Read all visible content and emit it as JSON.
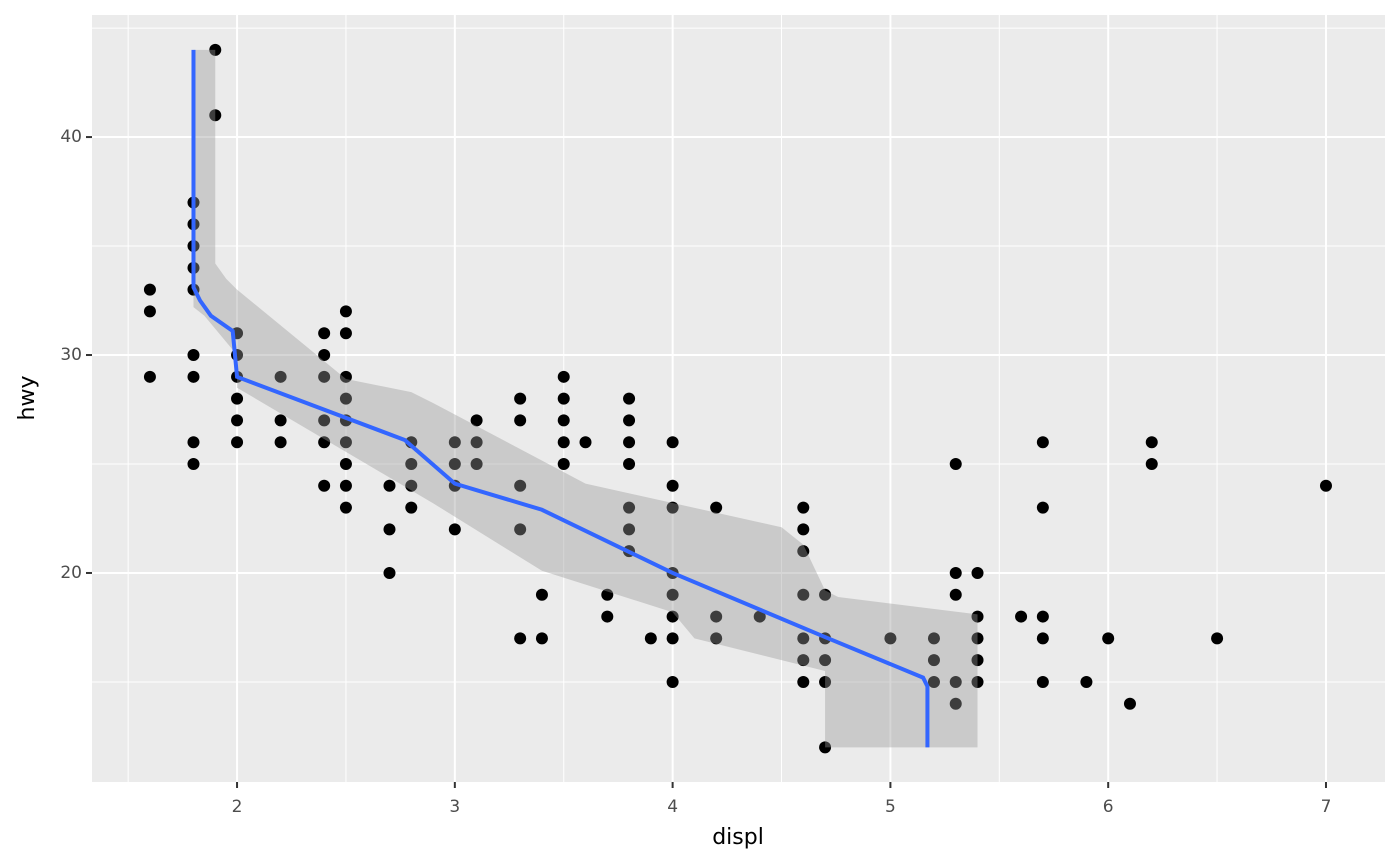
{
  "chart_data": {
    "type": "scatter",
    "x_label": "displ",
    "y_label": "hwy",
    "xlim": [
      1.334,
      7.271
    ],
    "ylim": [
      10.41,
      45.6
    ],
    "xticks": [
      2,
      3,
      4,
      5,
      6,
      7
    ],
    "yticks": [
      20,
      30,
      40
    ],
    "x_minor_ticks": [
      1.5,
      2.5,
      3.5,
      4.5,
      5.5,
      6.5
    ],
    "y_minor_ticks": [
      15,
      25,
      35,
      45
    ],
    "grid": true,
    "color": "#000000",
    "x": [
      1.6,
      1.6,
      1.6,
      1.8,
      1.8,
      1.8,
      1.8,
      1.8,
      1.8,
      1.8,
      1.8,
      1.8,
      1.9,
      1.9,
      2.0,
      2.0,
      2.0,
      2.0,
      2.0,
      2.0,
      2.2,
      2.2,
      2.2,
      2.4,
      2.4,
      2.4,
      2.4,
      2.4,
      2.4,
      2.5,
      2.5,
      2.5,
      2.5,
      2.5,
      2.5,
      2.5,
      2.5,
      2.5,
      2.7,
      2.7,
      2.7,
      2.8,
      2.8,
      2.8,
      2.8,
      3.0,
      3.0,
      3.0,
      3.0,
      3.1,
      3.1,
      3.1,
      3.3,
      3.3,
      3.3,
      3.3,
      3.3,
      3.4,
      3.4,
      3.5,
      3.5,
      3.5,
      3.5,
      3.5,
      3.6,
      3.7,
      3.7,
      3.8,
      3.8,
      3.8,
      3.8,
      3.8,
      3.8,
      3.8,
      3.9,
      4.0,
      4.0,
      4.0,
      4.0,
      4.0,
      4.0,
      4.0,
      4.0,
      4.2,
      4.2,
      4.2,
      4.4,
      4.6,
      4.6,
      4.6,
      4.6,
      4.6,
      4.6,
      4.6,
      4.7,
      4.7,
      4.7,
      4.7,
      4.7,
      5.0,
      5.2,
      5.2,
      5.2,
      5.3,
      5.3,
      5.3,
      5.3,
      5.3,
      5.4,
      5.4,
      5.4,
      5.4,
      5.4,
      5.6,
      5.7,
      5.7,
      5.7,
      5.7,
      5.7,
      5.9,
      6.0,
      6.1,
      6.2,
      6.2,
      6.5,
      7.0
    ],
    "y": [
      33,
      32,
      29,
      37,
      36,
      35,
      34,
      33,
      30,
      29,
      26,
      25,
      44,
      41,
      31,
      30,
      29,
      28,
      27,
      26,
      29,
      27,
      26,
      31,
      30,
      29,
      27,
      26,
      24,
      32,
      31,
      29,
      28,
      27,
      26,
      25,
      24,
      23,
      24,
      22,
      20,
      26,
      25,
      24,
      23,
      26,
      25,
      24,
      22,
      27,
      26,
      25,
      28,
      27,
      24,
      22,
      17,
      19,
      17,
      29,
      28,
      27,
      26,
      25,
      26,
      19,
      18,
      28,
      27,
      26,
      25,
      23,
      22,
      21,
      17,
      26,
      24,
      23,
      20,
      19,
      18,
      17,
      15,
      23,
      18,
      17,
      18,
      23,
      22,
      21,
      19,
      17,
      16,
      15,
      19,
      17,
      16,
      15,
      12,
      17,
      17,
      16,
      15,
      25,
      20,
      19,
      15,
      14,
      20,
      18,
      17,
      16,
      15,
      18,
      26,
      23,
      18,
      17,
      15,
      15,
      17,
      14,
      26,
      25,
      17,
      24
    ],
    "smooth": {
      "color": "#3366FF",
      "x": [
        1.8,
        1.8,
        1.83,
        1.88,
        1.98,
        2.0,
        2.77,
        3.0,
        3.1,
        3.4,
        4.0,
        4.7,
        5.15,
        5.17,
        5.17
      ],
      "y": [
        44,
        33.1,
        32.5,
        31.8,
        31.1,
        29.0,
        26.1,
        24.1,
        23.8,
        22.9,
        20,
        17.06,
        15.2,
        14.8,
        12
      ]
    },
    "ribbon": {
      "color": "#999999",
      "x": [
        1.8,
        1.9,
        1.9,
        1.95,
        2.0,
        2.5,
        2.8,
        2.9,
        3.6,
        4.5,
        4.6,
        4.7,
        4.76,
        5.4,
        5.4,
        4.7,
        4.7,
        4.1,
        4.0,
        3.4,
        2.9,
        2.0,
        2.0,
        1.85,
        1.8
      ],
      "y": [
        44,
        44,
        34.2,
        33.5,
        33.0,
        28.9,
        28.3,
        27.8,
        24.1,
        22.1,
        21.3,
        19.2,
        18.9,
        18.1,
        12,
        12,
        15.5,
        17.0,
        18.2,
        20.1,
        23.2,
        28.5,
        30,
        31.8,
        32.2
      ]
    }
  }
}
